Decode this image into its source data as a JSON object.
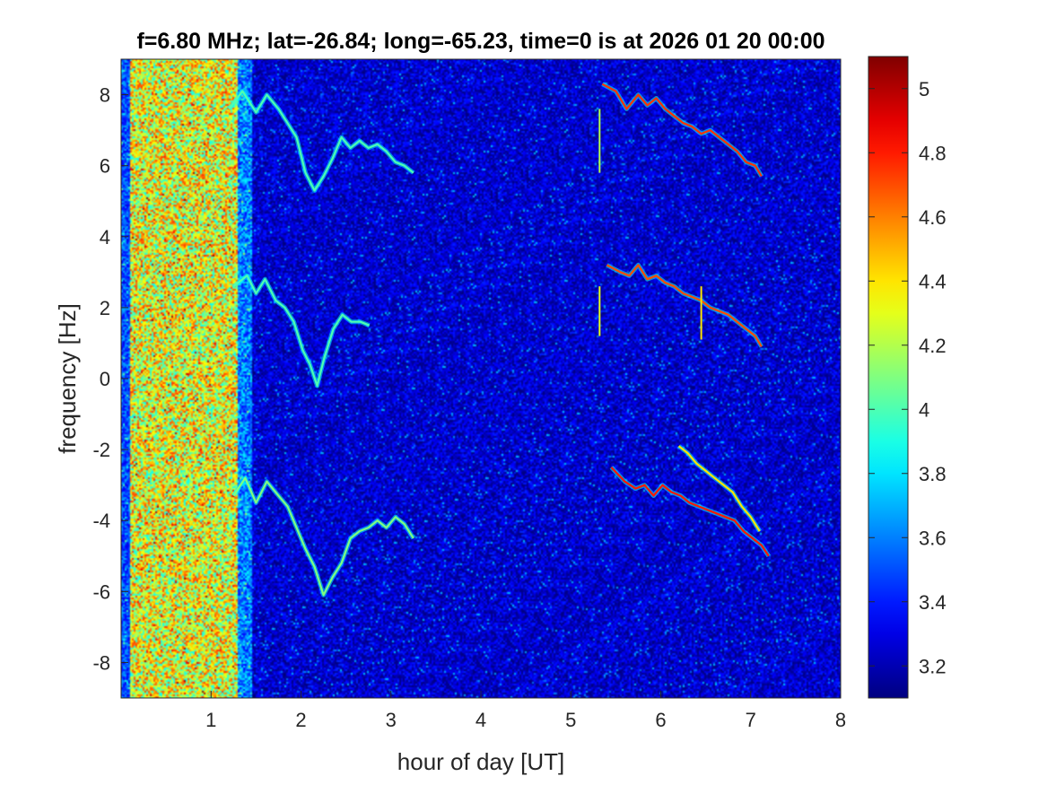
{
  "chart_data": {
    "type": "heatmap",
    "title": "f=6.80 MHz;  lat=-26.84; long=-65.23, time=0 is at 2026 01 20 00:00",
    "xlabel": "hour of day [UT]",
    "ylabel": "frequency [Hz]",
    "xlim": [
      0,
      8
    ],
    "ylim": [
      -9,
      9
    ],
    "xticks": [
      1,
      2,
      3,
      4,
      5,
      6,
      7,
      8
    ],
    "yticks": [
      -8,
      -6,
      -4,
      -2,
      0,
      2,
      4,
      6,
      8
    ],
    "colormap": "jet",
    "colorbar": {
      "range": [
        3.1,
        5.1
      ],
      "ticks": [
        3.2,
        3.4,
        3.6,
        3.8,
        4,
        4.2,
        4.4,
        4.6,
        4.8,
        5
      ]
    },
    "background_level": 3.25,
    "broadband_band": {
      "x_range": [
        0.1,
        1.3
      ],
      "level": 4.3
    },
    "traces": [
      {
        "x": [
          1.2,
          1.35,
          1.5,
          1.62,
          1.75,
          1.85,
          1.95,
          2.05,
          2.15,
          2.25,
          2.35,
          2.45,
          2.55,
          2.65,
          2.75,
          2.85,
          2.95,
          3.05,
          3.15,
          3.25
        ],
        "y": [
          7.6,
          8.1,
          7.5,
          8.0,
          7.6,
          7.2,
          6.8,
          5.8,
          5.3,
          5.7,
          6.2,
          6.8,
          6.5,
          6.7,
          6.5,
          6.6,
          6.4,
          6.1,
          6.0,
          5.8
        ],
        "level": 4.0
      },
      {
        "x": [
          1.25,
          1.4,
          1.5,
          1.6,
          1.72,
          1.82,
          1.92,
          2.02,
          2.1,
          2.18,
          2.26,
          2.36,
          2.46,
          2.56,
          2.66,
          2.76
        ],
        "y": [
          2.6,
          2.9,
          2.4,
          2.8,
          2.2,
          2.0,
          1.6,
          0.8,
          0.4,
          -0.2,
          0.6,
          1.4,
          1.8,
          1.6,
          1.6,
          1.5
        ],
        "level": 4.0
      },
      {
        "x": [
          1.25,
          1.38,
          1.5,
          1.62,
          1.75,
          1.85,
          1.95,
          2.05,
          2.15,
          2.25,
          2.35,
          2.45,
          2.55,
          2.65,
          2.75,
          2.85,
          2.95,
          3.05,
          3.15,
          3.25
        ],
        "y": [
          -3.3,
          -2.8,
          -3.5,
          -2.9,
          -3.3,
          -3.6,
          -4.2,
          -4.8,
          -5.3,
          -6.1,
          -5.6,
          -5.2,
          -4.5,
          -4.3,
          -4.2,
          -4.0,
          -4.2,
          -3.9,
          -4.1,
          -4.5
        ],
        "level": 4.1
      },
      {
        "x": [
          5.35,
          5.5,
          5.62,
          5.75,
          5.85,
          5.95,
          6.05,
          6.15,
          6.25,
          6.35,
          6.45,
          6.55,
          6.65,
          6.75,
          6.85,
          6.95,
          7.05,
          7.12
        ],
        "y": [
          8.3,
          8.1,
          7.6,
          8.0,
          7.7,
          7.9,
          7.6,
          7.4,
          7.2,
          7.1,
          6.9,
          7.0,
          6.8,
          6.6,
          6.4,
          6.1,
          6.0,
          5.7
        ],
        "level": 4.75
      },
      {
        "x": [
          5.4,
          5.55,
          5.65,
          5.75,
          5.85,
          5.95,
          6.05,
          6.15,
          6.25,
          6.35,
          6.45,
          6.55,
          6.65,
          6.75,
          6.85,
          6.95,
          7.05,
          7.12
        ],
        "y": [
          3.2,
          3.0,
          2.9,
          3.2,
          2.8,
          2.9,
          2.7,
          2.6,
          2.4,
          2.3,
          2.2,
          2.0,
          1.9,
          1.8,
          1.6,
          1.4,
          1.2,
          0.9
        ],
        "level": 4.7
      },
      {
        "x": [
          5.45,
          5.6,
          5.72,
          5.82,
          5.92,
          6.02,
          6.12,
          6.22,
          6.32,
          6.42,
          6.52,
          6.62,
          6.72,
          6.82,
          6.92,
          7.02,
          7.12,
          7.2
        ],
        "y": [
          -2.5,
          -2.9,
          -3.1,
          -3.0,
          -3.3,
          -3.0,
          -3.2,
          -3.3,
          -3.5,
          -3.6,
          -3.7,
          -3.8,
          -3.9,
          -4.0,
          -4.3,
          -4.5,
          -4.7,
          -5.0
        ],
        "level": 4.8
      },
      {
        "x": [
          6.2,
          6.3,
          6.4,
          6.5,
          6.6,
          6.7,
          6.8,
          6.9,
          7.0,
          7.1
        ],
        "y": [
          -1.9,
          -2.1,
          -2.4,
          -2.6,
          -2.8,
          -3.0,
          -3.2,
          -3.6,
          -3.9,
          -4.3
        ],
        "level": 4.4
      }
    ],
    "spikes": [
      {
        "x": 5.32,
        "y_range": [
          1.2,
          2.6
        ],
        "level": 4.3
      },
      {
        "x": 5.32,
        "y_range": [
          5.8,
          7.6
        ],
        "level": 4.2
      },
      {
        "x": 6.45,
        "y_range": [
          1.1,
          2.6
        ],
        "level": 4.4
      }
    ]
  }
}
